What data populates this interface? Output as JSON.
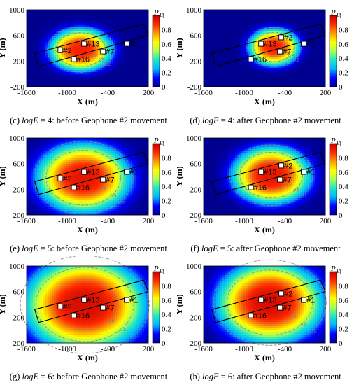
{
  "colors": {
    "colormap": [
      "#00008f",
      "#0000ff",
      "#00b4ff",
      "#1ee6c8",
      "#aaff55",
      "#ffff00",
      "#ff9a00",
      "#ff2a00",
      "#c80000"
    ],
    "station_box": "#000000",
    "contour": "#8c8c8c"
  },
  "axes": {
    "xlabel": "X (m)",
    "ylabel": "Y (m)",
    "xticks": [
      "-1600",
      "-1000",
      "-400",
      "200"
    ],
    "yticks": [
      "1000",
      "600",
      "200",
      "-200"
    ],
    "colorbar_title": "P",
    "colorbar_subscript": "E",
    "colorbar_ticks": [
      "1",
      "0.8",
      "0.6",
      "0.4",
      "0.2",
      "0"
    ]
  },
  "chart_data": [
    {
      "type": "heatmap",
      "panel": "c",
      "logE": 4,
      "moved": false,
      "caption_letter": "(c)",
      "caption_var": "logE",
      "caption_rest": " = 4: before Geophone #2 movement",
      "xlim": [
        -1600,
        200
      ],
      "ylim": [
        -200,
        1000
      ],
      "x_data_label": "X (m)",
      "y_data_label": "Y (m)",
      "value_label": "P_E",
      "peak": {
        "x": -800,
        "y": 380
      },
      "spread": [
        420,
        300
      ],
      "peak_value": 0.9,
      "contour_labels": [
        "0.2",
        "0.5",
        "0.8"
      ],
      "stations": [
        {
          "label": "#2",
          "x": -1100,
          "y": 370
        },
        {
          "label": "#13",
          "x": -750,
          "y": 470
        },
        {
          "label": "#16",
          "x": -900,
          "y": 230
        },
        {
          "label": "#7",
          "x": -470,
          "y": 350
        },
        {
          "label": "#1",
          "x": -120,
          "y": 470
        }
      ]
    },
    {
      "type": "heatmap",
      "panel": "d",
      "logE": 4,
      "moved": true,
      "caption_letter": "(d)",
      "caption_var": "logE",
      "caption_rest": " = 4: after Geophone #2 movement",
      "xlim": [
        -1600,
        200
      ],
      "ylim": [
        -200,
        1000
      ],
      "x_data_label": "X (m)",
      "y_data_label": "Y (m)",
      "value_label": "P_E",
      "peak": {
        "x": -560,
        "y": 420
      },
      "spread": [
        340,
        260
      ],
      "peak_value": 0.9,
      "contour_labels": [
        "0.2",
        "0.5",
        "0.8"
      ],
      "stations": [
        {
          "label": "#2",
          "x": -450,
          "y": 570
        },
        {
          "label": "#13",
          "x": -750,
          "y": 470
        },
        {
          "label": "#16",
          "x": -900,
          "y": 230
        },
        {
          "label": "#7",
          "x": -470,
          "y": 350
        },
        {
          "label": "#1",
          "x": -120,
          "y": 470
        }
      ]
    },
    {
      "type": "heatmap",
      "panel": "e",
      "logE": 5,
      "moved": false,
      "caption_letter": "(e)",
      "caption_var": "logE",
      "caption_rest": " = 5: before Geophone #2 movement",
      "xlim": [
        -1600,
        200
      ],
      "ylim": [
        -200,
        1000
      ],
      "x_data_label": "X (m)",
      "y_data_label": "Y (m)",
      "value_label": "P_E",
      "peak": {
        "x": -760,
        "y": 380
      },
      "spread": [
        620,
        480
      ],
      "peak_value": 0.93,
      "contour_labels": [
        "0.2",
        "0.5",
        "0.8"
      ],
      "stations": [
        {
          "label": "#2",
          "x": -1100,
          "y": 370
        },
        {
          "label": "#13",
          "x": -750,
          "y": 470
        },
        {
          "label": "#16",
          "x": -900,
          "y": 230
        },
        {
          "label": "#7",
          "x": -470,
          "y": 350
        },
        {
          "label": "#1",
          "x": -120,
          "y": 470
        }
      ]
    },
    {
      "type": "heatmap",
      "panel": "f",
      "logE": 5,
      "moved": true,
      "caption_letter": "(f)",
      "caption_var": "logE",
      "caption_rest": " = 5: after Geophone #2 movement",
      "xlim": [
        -1600,
        200
      ],
      "ylim": [
        -200,
        1000
      ],
      "x_data_label": "X (m)",
      "y_data_label": "Y (m)",
      "value_label": "P_E",
      "peak": {
        "x": -600,
        "y": 420
      },
      "spread": [
        520,
        400
      ],
      "peak_value": 0.93,
      "contour_labels": [
        "0.2",
        "0.5",
        "0.8"
      ],
      "stations": [
        {
          "label": "#2",
          "x": -450,
          "y": 570
        },
        {
          "label": "#13",
          "x": -750,
          "y": 470
        },
        {
          "label": "#16",
          "x": -900,
          "y": 230
        },
        {
          "label": "#7",
          "x": -470,
          "y": 350
        },
        {
          "label": "#1",
          "x": -120,
          "y": 470
        }
      ]
    },
    {
      "type": "heatmap",
      "panel": "g",
      "logE": 6,
      "moved": false,
      "caption_letter": "(g)",
      "caption_var": "logE",
      "caption_rest": " = 6: before Geophone #2 movement",
      "xlim": [
        -1600,
        200
      ],
      "ylim": [
        -200,
        1000
      ],
      "x_data_label": "X (m)",
      "y_data_label": "Y (m)",
      "value_label": "P_E",
      "peak": {
        "x": -740,
        "y": 400
      },
      "spread": [
        800,
        640
      ],
      "peak_value": 0.96,
      "contour_labels": [
        "0.2",
        "0.5",
        "0.8"
      ],
      "stations": [
        {
          "label": "#2",
          "x": -1100,
          "y": 370
        },
        {
          "label": "#13",
          "x": -750,
          "y": 470
        },
        {
          "label": "#16",
          "x": -900,
          "y": 230
        },
        {
          "label": "#7",
          "x": -470,
          "y": 350
        },
        {
          "label": "#1",
          "x": -120,
          "y": 470
        }
      ]
    },
    {
      "type": "heatmap",
      "panel": "h",
      "logE": 6,
      "moved": true,
      "caption_letter": "(h)",
      "caption_var": "logE",
      "caption_rest": " = 6: after Geophone #2 movement",
      "xlim": [
        -1600,
        200
      ],
      "ylim": [
        -200,
        1000
      ],
      "x_data_label": "X (m)",
      "y_data_label": "Y (m)",
      "value_label": "P_E",
      "peak": {
        "x": -620,
        "y": 430
      },
      "spread": [
        700,
        560
      ],
      "peak_value": 0.96,
      "contour_labels": [
        "0.2",
        "0.5",
        "0.8"
      ],
      "stations": [
        {
          "label": "#2",
          "x": -450,
          "y": 570
        },
        {
          "label": "#13",
          "x": -750,
          "y": 470
        },
        {
          "label": "#16",
          "x": -900,
          "y": 230
        },
        {
          "label": "#7",
          "x": -470,
          "y": 350
        },
        {
          "label": "#1",
          "x": -120,
          "y": 470
        }
      ]
    }
  ]
}
